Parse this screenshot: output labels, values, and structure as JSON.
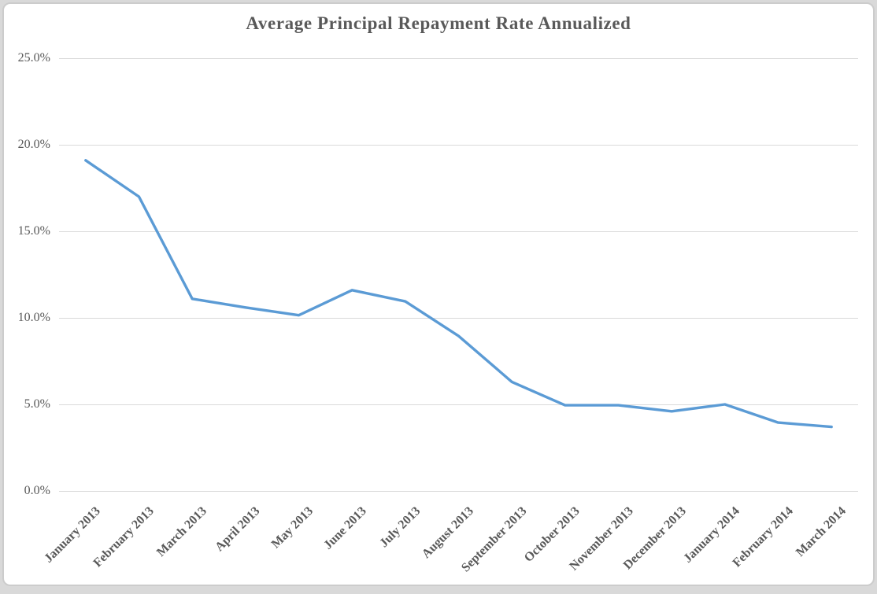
{
  "chart": {
    "colors": {
      "line": "#5B9BD5",
      "gridline": "#D9D9D9",
      "text": "#595959",
      "frame_border": "#CCCCCC",
      "background": "#FFFFFF"
    }
  },
  "chart_data": {
    "type": "line",
    "title": "Average Principal Repayment Rate Annualized",
    "categories": [
      "January 2013",
      "February 2013",
      "March 2013",
      "April 2013",
      "May 2013",
      "June 2013",
      "July 2013",
      "August 2013",
      "September 2013",
      "October 2013",
      "November 2013",
      "December 2013",
      "January 2014",
      "February 2014",
      "March 2014"
    ],
    "series": [
      {
        "name": "Average Principal Repayment Rate Annualized",
        "values": [
          19.1,
          17.0,
          11.1,
          10.6,
          10.15,
          11.6,
          10.95,
          8.95,
          6.3,
          4.95,
          4.95,
          4.6,
          5.0,
          3.95,
          3.7
        ]
      }
    ],
    "xlabel": "",
    "ylabel": "",
    "ylim": [
      0,
      25
    ],
    "ytick_step": 5,
    "ytick_labels": [
      "0.0%",
      "5.0%",
      "10.0%",
      "15.0%",
      "20.0%",
      "25.0%"
    ],
    "grid": true,
    "legend": false
  }
}
